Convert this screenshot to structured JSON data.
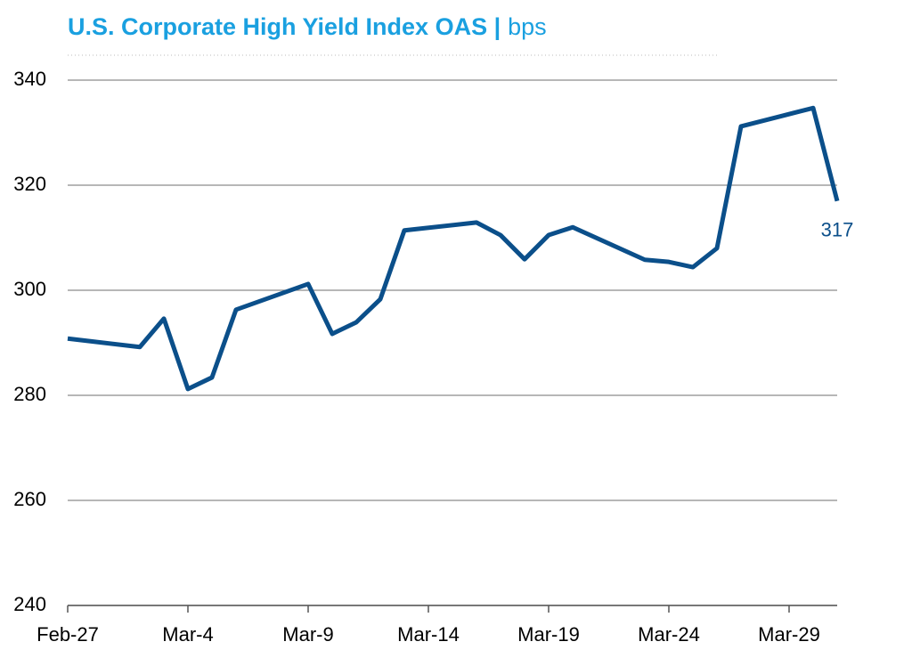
{
  "chart_data": {
    "type": "line",
    "title": "U.S. Corporate High Yield Index OAS |",
    "unit": "bps",
    "x": [
      0,
      3,
      4,
      5,
      6,
      7,
      10,
      11,
      12,
      13,
      14,
      17,
      18,
      19,
      20,
      21,
      24,
      25,
      26,
      27,
      28,
      31,
      32
    ],
    "values": [
      290.8,
      289.2,
      294.6,
      281.2,
      283.4,
      296.3,
      301.2,
      291.7,
      293.9,
      298.3,
      311.4,
      312.9,
      310.5,
      305.9,
      310.5,
      312.0,
      305.8,
      305.4,
      304.4,
      308.0,
      331.2,
      334.7,
      317
    ],
    "color": "#0b4f8a",
    "xlim": [
      0,
      32
    ],
    "xticks": [
      {
        "value": 0,
        "label": "Feb-27"
      },
      {
        "value": 5,
        "label": "Mar-4"
      },
      {
        "value": 10,
        "label": "Mar-9"
      },
      {
        "value": 15,
        "label": "Mar-14"
      },
      {
        "value": 20,
        "label": "Mar-19"
      },
      {
        "value": 25,
        "label": "Mar-24"
      },
      {
        "value": 30,
        "label": "Mar-29"
      }
    ],
    "ylim": [
      240,
      340
    ],
    "yticks": [
      240,
      260,
      280,
      300,
      320,
      340
    ],
    "grid": true
  }
}
